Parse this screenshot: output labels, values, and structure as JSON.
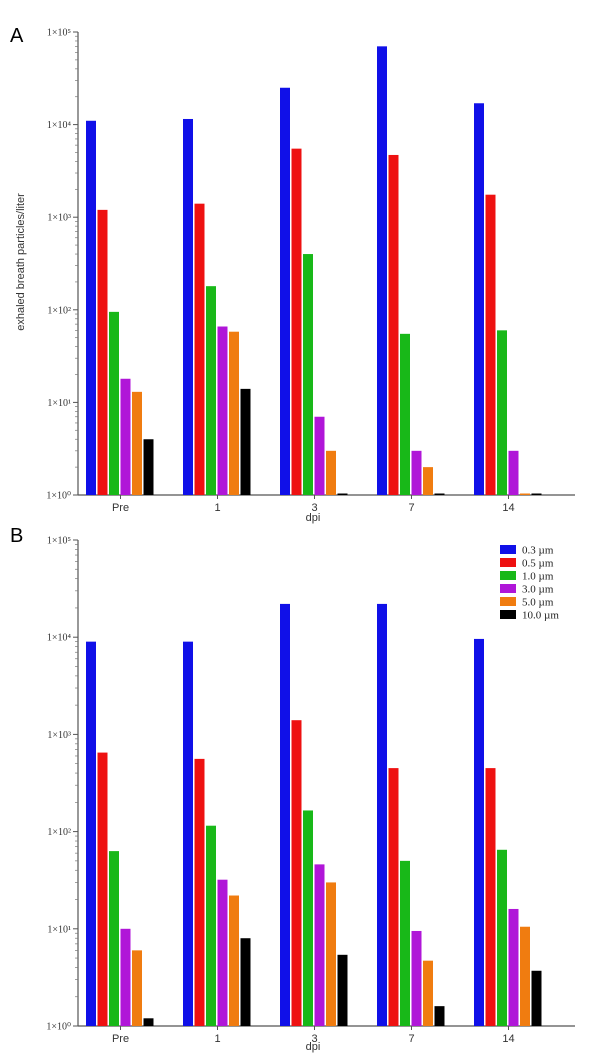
{
  "chart_data": [
    {
      "type": "bar",
      "panel": "A",
      "scale": "log",
      "ylim": [
        1,
        100000
      ],
      "y_ticks": [
        "1×10⁰",
        "1×10¹",
        "1×10²",
        "1×10³",
        "1×10⁴",
        "1×10⁵"
      ],
      "categories": [
        "Pre",
        "1",
        "3",
        "7",
        "14"
      ],
      "xlabel": "dpi",
      "ylabel": "exhaled breath particles/liter",
      "series": [
        {
          "name": "0.3 µm",
          "color": "#1010e8",
          "values": [
            11000,
            11500,
            25000,
            70000,
            17000
          ]
        },
        {
          "name": "0.5 µm",
          "color": "#ee1111",
          "values": [
            1200,
            1400,
            5500,
            4700,
            1750
          ]
        },
        {
          "name": "1.0 µm",
          "color": "#18b818",
          "values": [
            95,
            180,
            400,
            55,
            60
          ]
        },
        {
          "name": "3.0 µm",
          "color": "#b016d8",
          "values": [
            18,
            66,
            7,
            3,
            3
          ]
        },
        {
          "name": "5.0 µm",
          "color": "#f07c10",
          "values": [
            13,
            58,
            3,
            2,
            1
          ]
        },
        {
          "name": "10.0 µm",
          "color": "#000000",
          "values": [
            4,
            14,
            1,
            1,
            1
          ]
        }
      ]
    },
    {
      "type": "bar",
      "panel": "B",
      "scale": "log",
      "ylim": [
        1,
        100000
      ],
      "y_ticks": [
        "1×10⁰",
        "1×10¹",
        "1×10²",
        "1×10³",
        "1×10⁴",
        "1×10⁵"
      ],
      "categories": [
        "Pre",
        "1",
        "3",
        "7",
        "14"
      ],
      "xlabel": "dpi",
      "ylabel": "",
      "legend_position": "top-right",
      "series": [
        {
          "name": "0.3 µm",
          "color": "#1010e8",
          "values": [
            9000,
            9000,
            22000,
            22000,
            9600
          ]
        },
        {
          "name": "0.5 µm",
          "color": "#ee1111",
          "values": [
            650,
            560,
            1400,
            450,
            450
          ]
        },
        {
          "name": "1.0 µm",
          "color": "#18b818",
          "values": [
            63,
            115,
            165,
            50,
            65
          ]
        },
        {
          "name": "3.0 µm",
          "color": "#b016d8",
          "values": [
            10,
            32,
            46,
            9.5,
            16
          ]
        },
        {
          "name": "5.0 µm",
          "color": "#f07c10",
          "values": [
            6,
            22,
            30,
            4.7,
            10.5
          ]
        },
        {
          "name": "10.0 µm",
          "color": "#000000",
          "values": [
            1.2,
            8,
            5.4,
            1.6,
            3.7
          ]
        }
      ]
    }
  ]
}
